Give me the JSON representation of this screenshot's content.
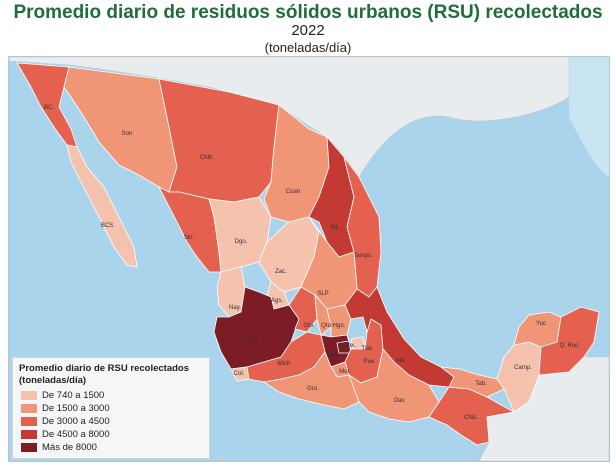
{
  "header": {
    "title": "Promedio diario de residuos sólidos urbanos (RSU) recolectados",
    "year": "2022",
    "units": "(toneladas/día)"
  },
  "colors": {
    "ocean": "#a9d4ec",
    "land_outside": "#e9ecee",
    "class1": "#f5c2ad",
    "class2": "#f09575",
    "class3": "#e4614f",
    "class4": "#c23a33",
    "class5": "#7c1d26"
  },
  "legend": {
    "title": "Promedio diario de RSU recolectados (toneladas/día)",
    "items": [
      {
        "label": "De 740 a 1500",
        "class": "class1"
      },
      {
        "label": "De 1500 a 3000",
        "class": "class2"
      },
      {
        "label": "De 3000 a 4500",
        "class": "class3"
      },
      {
        "label": "De 4500 a 8000",
        "class": "class4"
      },
      {
        "label": "Más de 8000",
        "class": "class5"
      }
    ]
  },
  "states": [
    {
      "abbr": "BC.",
      "class": "class3"
    },
    {
      "abbr": "BCS",
      "class": "class1"
    },
    {
      "abbr": "Son",
      "class": "class2"
    },
    {
      "abbr": "Chih.",
      "class": "class3"
    },
    {
      "abbr": "Coah",
      "class": "class2"
    },
    {
      "abbr": "NL",
      "class": "class4"
    },
    {
      "abbr": "Tamps.",
      "class": "class3"
    },
    {
      "abbr": "Sin.",
      "class": "class3"
    },
    {
      "abbr": "Dgo.",
      "class": "class1"
    },
    {
      "abbr": "Zac.",
      "class": "class1"
    },
    {
      "abbr": "SLP",
      "class": "class2"
    },
    {
      "abbr": "Nay.",
      "class": "class1"
    },
    {
      "abbr": "Ags.",
      "class": "class1"
    },
    {
      "abbr": "Jal.",
      "class": "class5"
    },
    {
      "abbr": "Gto.",
      "class": "class3"
    },
    {
      "abbr": "Qro.",
      "class": "class2"
    },
    {
      "abbr": "Hgo.",
      "class": "class2"
    },
    {
      "abbr": "Col.",
      "class": "class1"
    },
    {
      "abbr": "Mich",
      "class": "class3"
    },
    {
      "abbr": "Méx.",
      "class": "class5"
    },
    {
      "abbr": "Cdmx.",
      "class": "class5"
    },
    {
      "abbr": "Mor.",
      "class": "class2"
    },
    {
      "abbr": "Tlax",
      "class": "class1"
    },
    {
      "abbr": "Pue",
      "class": "class3"
    },
    {
      "abbr": "Ver.",
      "class": "class4"
    },
    {
      "abbr": "Gro.",
      "class": "class2"
    },
    {
      "abbr": "Oax",
      "class": "class2"
    },
    {
      "abbr": "Chis.",
      "class": "class3"
    },
    {
      "abbr": "Tab.",
      "class": "class2"
    },
    {
      "abbr": "Camp.",
      "class": "class1"
    },
    {
      "abbr": "Yuc",
      "class": "class2"
    },
    {
      "abbr": "Q. Roo",
      "class": "class3"
    }
  ]
}
